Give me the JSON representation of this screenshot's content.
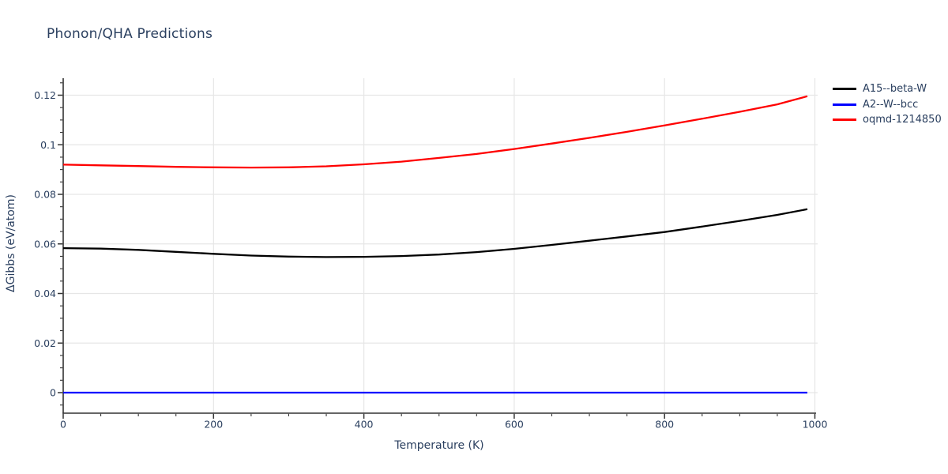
{
  "page": {
    "background": "#ffffff",
    "text_color": "#2a3f5f"
  },
  "chart_data": {
    "type": "line",
    "title": "Phonon/QHA Predictions",
    "xlabel": "Temperature (K)",
    "ylabel": "ΔGibbs (eV/atom)",
    "legend_position": "top-right-outside",
    "grid": true,
    "xlim": [
      0,
      1004
    ],
    "ylim": [
      -0.0083,
      0.1275
    ],
    "x_ticks": [
      0,
      200,
      400,
      600,
      800,
      1000
    ],
    "x_minor_step": 50,
    "y_ticks": [
      0,
      0.02,
      0.04,
      0.06,
      0.08,
      0.1,
      0.12
    ],
    "y_minor_step": 0.005,
    "colors": {
      "grid": "#e6e6e6",
      "axis": "#333333",
      "tick_label": "#2a3f5f",
      "title": "#2a3f5f"
    },
    "x": [
      0,
      50,
      100,
      150,
      200,
      250,
      300,
      350,
      400,
      450,
      500,
      550,
      600,
      650,
      700,
      750,
      800,
      850,
      900,
      950,
      990
    ],
    "series": [
      {
        "name": "A15--beta-W",
        "color": "#000000",
        "values": [
          0.0583,
          0.0581,
          0.0576,
          0.0568,
          0.056,
          0.0553,
          0.0549,
          0.0547,
          0.0548,
          0.0551,
          0.0557,
          0.0567,
          0.058,
          0.0596,
          0.0613,
          0.063,
          0.0648,
          0.067,
          0.0693,
          0.0717,
          0.074
        ]
      },
      {
        "name": "A2--W--bcc",
        "color": "#0000ff",
        "values": [
          0,
          0,
          0,
          0,
          0,
          0,
          0,
          0,
          0,
          0,
          0,
          0,
          0,
          0,
          0,
          0,
          0,
          0,
          0,
          0,
          0
        ]
      },
      {
        "name": "oqmd-1214850",
        "color": "#ff0000",
        "values": [
          0.092,
          0.0917,
          0.0914,
          0.0911,
          0.0909,
          0.0908,
          0.0909,
          0.0913,
          0.0921,
          0.0932,
          0.0947,
          0.0963,
          0.0983,
          0.1005,
          0.1028,
          0.1052,
          0.1078,
          0.1105,
          0.1133,
          0.1163,
          0.1196
        ]
      }
    ]
  }
}
